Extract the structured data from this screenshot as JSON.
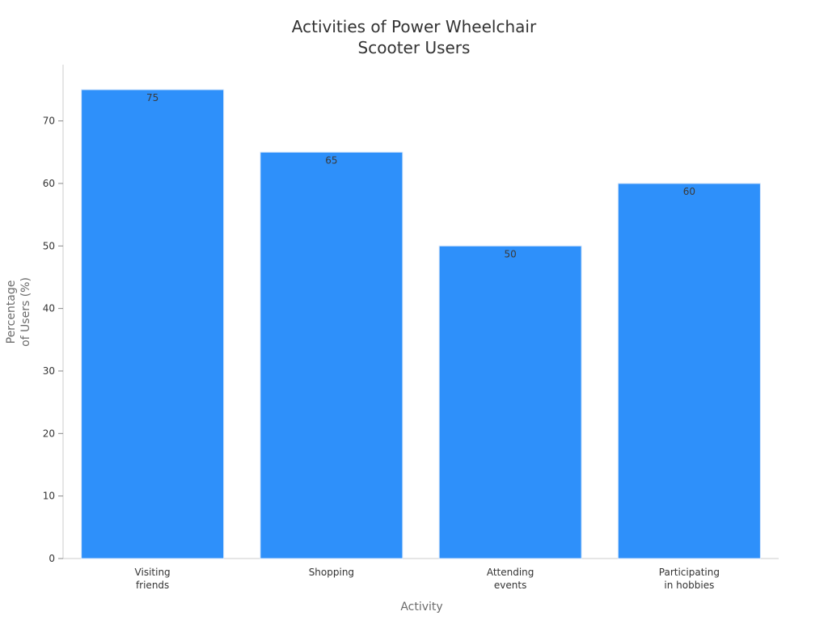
{
  "chart_data": {
    "type": "bar",
    "title": [
      "Activities of Power Wheelchair",
      "Scooter Users"
    ],
    "xlabel": "Activity",
    "ylabel": [
      "Percentage",
      "of Users (%)"
    ],
    "categories": [
      [
        "Visiting",
        "friends"
      ],
      [
        "Shopping"
      ],
      [
        "Attending",
        "events"
      ],
      [
        "Participating",
        "in hobbies"
      ]
    ],
    "values": [
      75,
      65,
      50,
      60
    ],
    "yticks": [
      0,
      10,
      20,
      30,
      40,
      50,
      60,
      70
    ],
    "ylim": [
      0,
      79
    ],
    "bar_color": "#2e90fa",
    "bar_edge_color": "#d6e6fb",
    "grid": false,
    "legend": "none"
  }
}
